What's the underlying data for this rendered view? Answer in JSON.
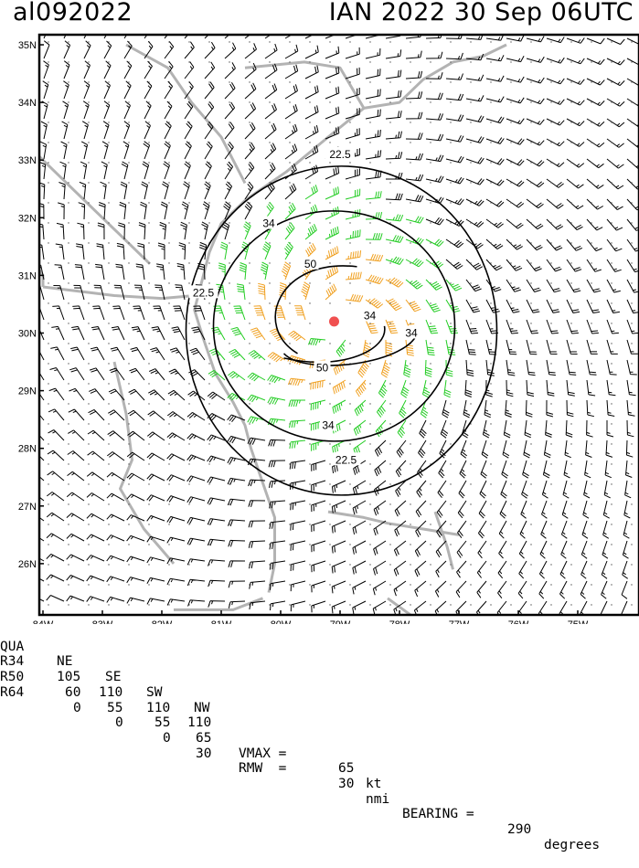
{
  "header": {
    "storm_id": "al092022",
    "storm_title": "IAN 2022 30 Sep 06UTC"
  },
  "map": {
    "lat_labels": [
      "35N",
      "34N",
      "33N",
      "32N",
      "31N",
      "30N",
      "29N",
      "28N",
      "27N",
      "26N"
    ],
    "lon_labels": [
      "84W",
      "83W",
      "82W",
      "81W",
      "80W",
      "79W",
      "78W",
      "77W",
      "76W",
      "75W"
    ],
    "storm_center": {
      "lat": 30.2,
      "lon": -79.1
    },
    "colors": {
      "wind_below_34": "#000000",
      "wind_34_50": "#22cc22",
      "wind_50_64": "#f0a020",
      "wind_64_plus": "#e04020",
      "coastline": "#b3b3b3",
      "contour": "#000000",
      "center_marker": "#f05050"
    },
    "contour_labels": [
      {
        "text": "22.5",
        "lat": 33.1,
        "lon": -79.0
      },
      {
        "text": "34",
        "lat": 31.9,
        "lon": -80.2
      },
      {
        "text": "50",
        "lat": 31.2,
        "lon": -79.5
      },
      {
        "text": "22.5",
        "lat": 30.7,
        "lon": -81.3
      },
      {
        "text": "34",
        "lat": 30.3,
        "lon": -78.5
      },
      {
        "text": "34",
        "lat": 30.0,
        "lon": -77.8
      },
      {
        "text": "50",
        "lat": 29.4,
        "lon": -79.3
      },
      {
        "text": "34",
        "lat": 28.4,
        "lon": -79.2
      },
      {
        "text": "22.5",
        "lat": 27.8,
        "lon": -78.9
      }
    ]
  },
  "stats": {
    "headers": [
      "QUA",
      "NE",
      "SE",
      "SW",
      "NW"
    ],
    "r34": {
      "label": "R34",
      "values": [
        "105",
        "110",
        "110",
        "110"
      ]
    },
    "r50": {
      "label": "R50",
      "values": [
        "60",
        "55",
        "55",
        "65"
      ]
    },
    "r64": {
      "label": "R64",
      "values": [
        "0",
        "0",
        "0",
        "30"
      ]
    },
    "vmax": {
      "label": "VMAX =",
      "value": "65",
      "unit": "kt"
    },
    "rmw": {
      "label": "RMW  =",
      "value": "30",
      "unit": "nmi",
      "bearing_label": "BEARING =",
      "bearing_value": "290",
      "bearing_unit": "degrees"
    }
  }
}
